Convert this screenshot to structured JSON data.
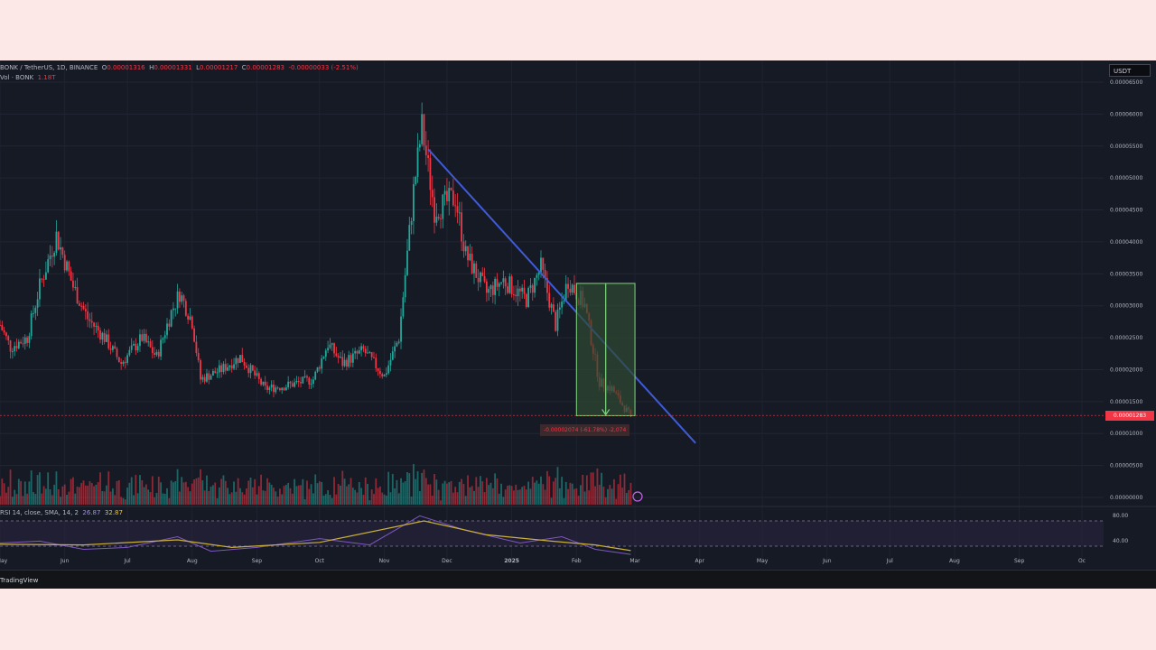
{
  "legend": {
    "symbol": "BONK / TetherUS, 1D, BINANCE",
    "o_label": "O",
    "o_value": "0.00001316",
    "h_label": "H",
    "h_value": "0.00001331",
    "l_label": "L",
    "l_value": "0.00001217",
    "c_label": "C",
    "c_value": "0.00001283",
    "change": "-0.00000033 (-2.51%)",
    "vol_label": "Vol · BONK",
    "vol_value": "1.18T"
  },
  "rsi_legend": {
    "label": "RSI 14, close, SMA, 14, 2",
    "rsi_value": "26.87",
    "sma_value": "32.87"
  },
  "currency": "USDT",
  "current_price_tag": "0.00001283",
  "measure_label": "-0.00002074 (-61.78%) -2,074",
  "branding": "TradingView",
  "colors": {
    "background": "#161a25",
    "up": "#26a69a",
    "down": "#f23645",
    "trendline": "#3f5bd6",
    "measure_fill": "#2f4a32",
    "measure_stroke": "#7fd87f",
    "rsi_line": "#7e57c2",
    "rsi_ma": "#c9b037"
  },
  "chart_data": {
    "type": "candlestick",
    "pair": "BONK/USDT",
    "interval": "1D",
    "x_ticks": [
      "May",
      "Jun",
      "Jul",
      "Aug",
      "Sep",
      "Oct",
      "Nov",
      "Dec",
      "2025",
      "Feb",
      "Mar",
      "Apr",
      "May",
      "Jun",
      "Jul",
      "Aug",
      "Sep",
      "Oc"
    ],
    "y_ticks": [
      "0.00006500",
      "0.00006000",
      "0.00005500",
      "0.00005000",
      "0.00004500",
      "0.00004000",
      "0.00003500",
      "0.00003000",
      "0.00002500",
      "0.00002000",
      "0.00001500",
      "0.00001000",
      "0.00000500",
      "0.00000000"
    ],
    "ylim": [
      0,
      6.5e-05
    ],
    "price_path": [
      [
        "2024-05-01",
        2.7e-05
      ],
      [
        "2024-05-06",
        2.35e-05
      ],
      [
        "2024-05-14",
        2.5e-05
      ],
      [
        "2024-05-20",
        3.3e-05
      ],
      [
        "2024-05-28",
        4.1e-05
      ],
      [
        "2024-06-05",
        3.3e-05
      ],
      [
        "2024-06-12",
        2.8e-05
      ],
      [
        "2024-06-20",
        2.5e-05
      ],
      [
        "2024-06-28",
        2.1e-05
      ],
      [
        "2024-07-08",
        2.5e-05
      ],
      [
        "2024-07-15",
        2.2e-05
      ],
      [
        "2024-07-22",
        2.9e-05
      ],
      [
        "2024-07-26",
        3.2e-05
      ],
      [
        "2024-08-01",
        2.75e-05
      ],
      [
        "2024-08-05",
        1.85e-05
      ],
      [
        "2024-08-15",
        2e-05
      ],
      [
        "2024-08-24",
        2.2e-05
      ],
      [
        "2024-09-05",
        1.7e-05
      ],
      [
        "2024-09-15",
        1.75e-05
      ],
      [
        "2024-09-28",
        1.85e-05
      ],
      [
        "2024-10-05",
        2.4e-05
      ],
      [
        "2024-10-12",
        2.1e-05
      ],
      [
        "2024-10-22",
        2.3e-05
      ],
      [
        "2024-11-01",
        1.9e-05
      ],
      [
        "2024-11-08",
        2.5e-05
      ],
      [
        "2024-11-15",
        4.8e-05
      ],
      [
        "2024-11-19",
        5.8e-05
      ],
      [
        "2024-11-25",
        4.5e-05
      ],
      [
        "2024-12-05",
        4.7e-05
      ],
      [
        "2024-12-10",
        3.8e-05
      ],
      [
        "2024-12-20",
        3.2e-05
      ],
      [
        "2024-12-28",
        3.4e-05
      ],
      [
        "2025-01-08",
        3.1e-05
      ],
      [
        "2025-01-15",
        3.6e-05
      ],
      [
        "2025-01-22",
        2.7e-05
      ],
      [
        "2025-01-28",
        3.4e-05
      ],
      [
        "2025-02-05",
        3e-05
      ],
      [
        "2025-02-12",
        1.8e-05
      ],
      [
        "2025-02-18",
        1.7e-05
      ],
      [
        "2025-02-24",
        1.4e-05
      ],
      [
        "2025-02-27",
        1.28e-05
      ]
    ],
    "current_price": 1.283e-05,
    "trendline": {
      "from": [
        "2024-11-22",
        5.45e-05
      ],
      "to": [
        "2025-03-30",
        8.5e-06
      ]
    },
    "measure": {
      "from_date": "2025-02-01",
      "to_date": "2025-03-01",
      "high": 3.35e-05,
      "low": 1.28e-05,
      "change": -2.074e-05,
      "change_pct": -61.78
    },
    "rsi": {
      "panel_levels": [
        "80.00",
        "40.00"
      ],
      "last": 26.87,
      "ma_last": 32.87,
      "path": [
        [
          "2024-05-01",
          45
        ],
        [
          "2024-05-20",
          48
        ],
        [
          "2024-06-10",
          35
        ],
        [
          "2024-07-01",
          38
        ],
        [
          "2024-07-25",
          55
        ],
        [
          "2024-08-10",
          32
        ],
        [
          "2024-09-01",
          38
        ],
        [
          "2024-10-01",
          52
        ],
        [
          "2024-10-25",
          42
        ],
        [
          "2024-11-18",
          88
        ],
        [
          "2024-12-10",
          65
        ],
        [
          "2025-01-05",
          45
        ],
        [
          "2025-01-25",
          55
        ],
        [
          "2025-02-10",
          35
        ],
        [
          "2025-02-27",
          27
        ]
      ],
      "ma_path": [
        [
          "2024-05-01",
          43
        ],
        [
          "2024-06-10",
          42
        ],
        [
          "2024-07-25",
          50
        ],
        [
          "2024-08-20",
          38
        ],
        [
          "2024-10-01",
          46
        ],
        [
          "2024-11-20",
          80
        ],
        [
          "2024-12-20",
          58
        ],
        [
          "2025-01-20",
          48
        ],
        [
          "2025-02-10",
          42
        ],
        [
          "2025-02-27",
          33
        ]
      ]
    }
  }
}
